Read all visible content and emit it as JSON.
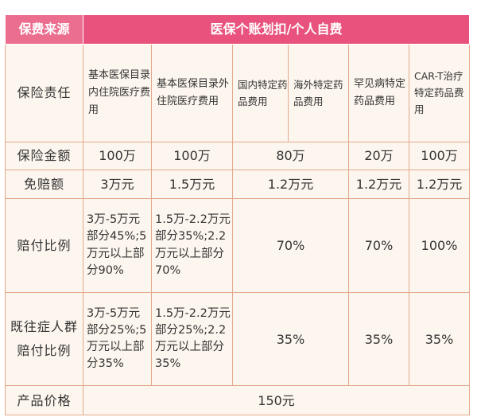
{
  "header": {
    "source": "保费来源",
    "payment": "医保个账划扣/个人自费"
  },
  "rows": {
    "liability": {
      "label": "保险责任",
      "cols": [
        "基本医保目录内住院医疗费用",
        "基本医保目录外住院医疗费用",
        "国内特定药品费用",
        "海外特定药品费用",
        "罕见病特定药品费用",
        "CAR-T治疗特定药品费用"
      ]
    },
    "amount": {
      "label": "保险金额",
      "values": [
        "100万",
        "100万",
        "80万",
        "20万",
        "100万"
      ]
    },
    "deductible": {
      "label": "免赔额",
      "values": [
        "3万元",
        "1.5万元",
        "1.2万元",
        "1.2万元",
        "1.2万元"
      ]
    },
    "ratio": {
      "label": "赔付比例",
      "values": [
        "3万-5万元部分45%;5万元以上部分90%",
        "1.5万-2.2万元部分35%;2.2万元以上部分70%",
        "70%",
        "70%",
        "100%"
      ]
    },
    "preexisting": {
      "label": "既往症人群赔付比例",
      "values": [
        "3万-5万元部分25%;5万元以上部分35%",
        "1.5万-2.2万元部分25%;2.2万元以上部分35%",
        "35%",
        "35%",
        "35%"
      ]
    },
    "price": {
      "label": "产品价格",
      "value": "150元"
    }
  },
  "colors": {
    "header_pink": "#e8527c",
    "header_pink_light": "#ec6e8f",
    "border": "#e2a88c",
    "cell_bg": "#fdf6ee",
    "text": "#333333"
  }
}
